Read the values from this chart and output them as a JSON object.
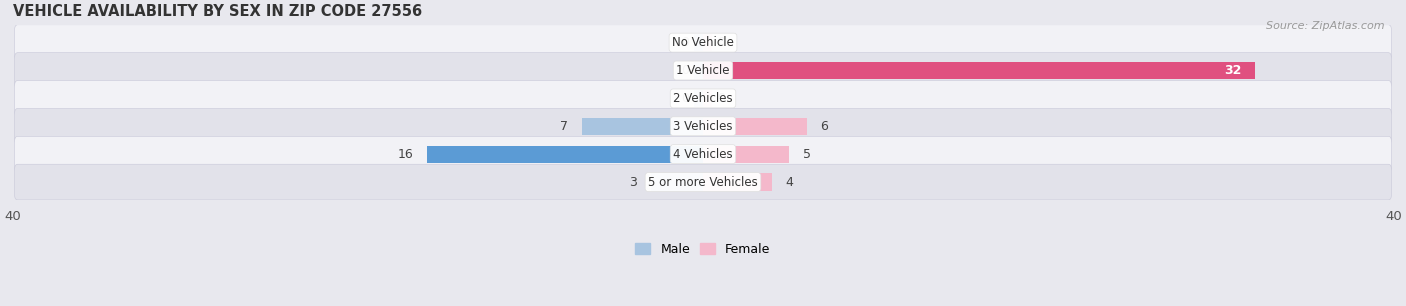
{
  "title": "VEHICLE AVAILABILITY BY SEX IN ZIP CODE 27556",
  "source": "Source: ZipAtlas.com",
  "categories": [
    "No Vehicle",
    "1 Vehicle",
    "2 Vehicles",
    "3 Vehicles",
    "4 Vehicles",
    "5 or more Vehicles"
  ],
  "male_values": [
    0,
    0,
    0,
    7,
    16,
    3
  ],
  "female_values": [
    0,
    32,
    0,
    6,
    5,
    4
  ],
  "male_color_light": "#a8c4e0",
  "male_color_dark": "#5b9bd5",
  "female_color_light": "#f4b8cb",
  "female_color_dark": "#e05080",
  "xlim": 40,
  "bar_height": 0.62,
  "bg_color": "#e8e8ee",
  "row_light": "#f2f2f6",
  "row_dark": "#e2e2ea",
  "title_fontsize": 10.5,
  "source_fontsize": 8,
  "label_fontsize": 9,
  "tick_fontsize": 9.5,
  "legend_fontsize": 9
}
